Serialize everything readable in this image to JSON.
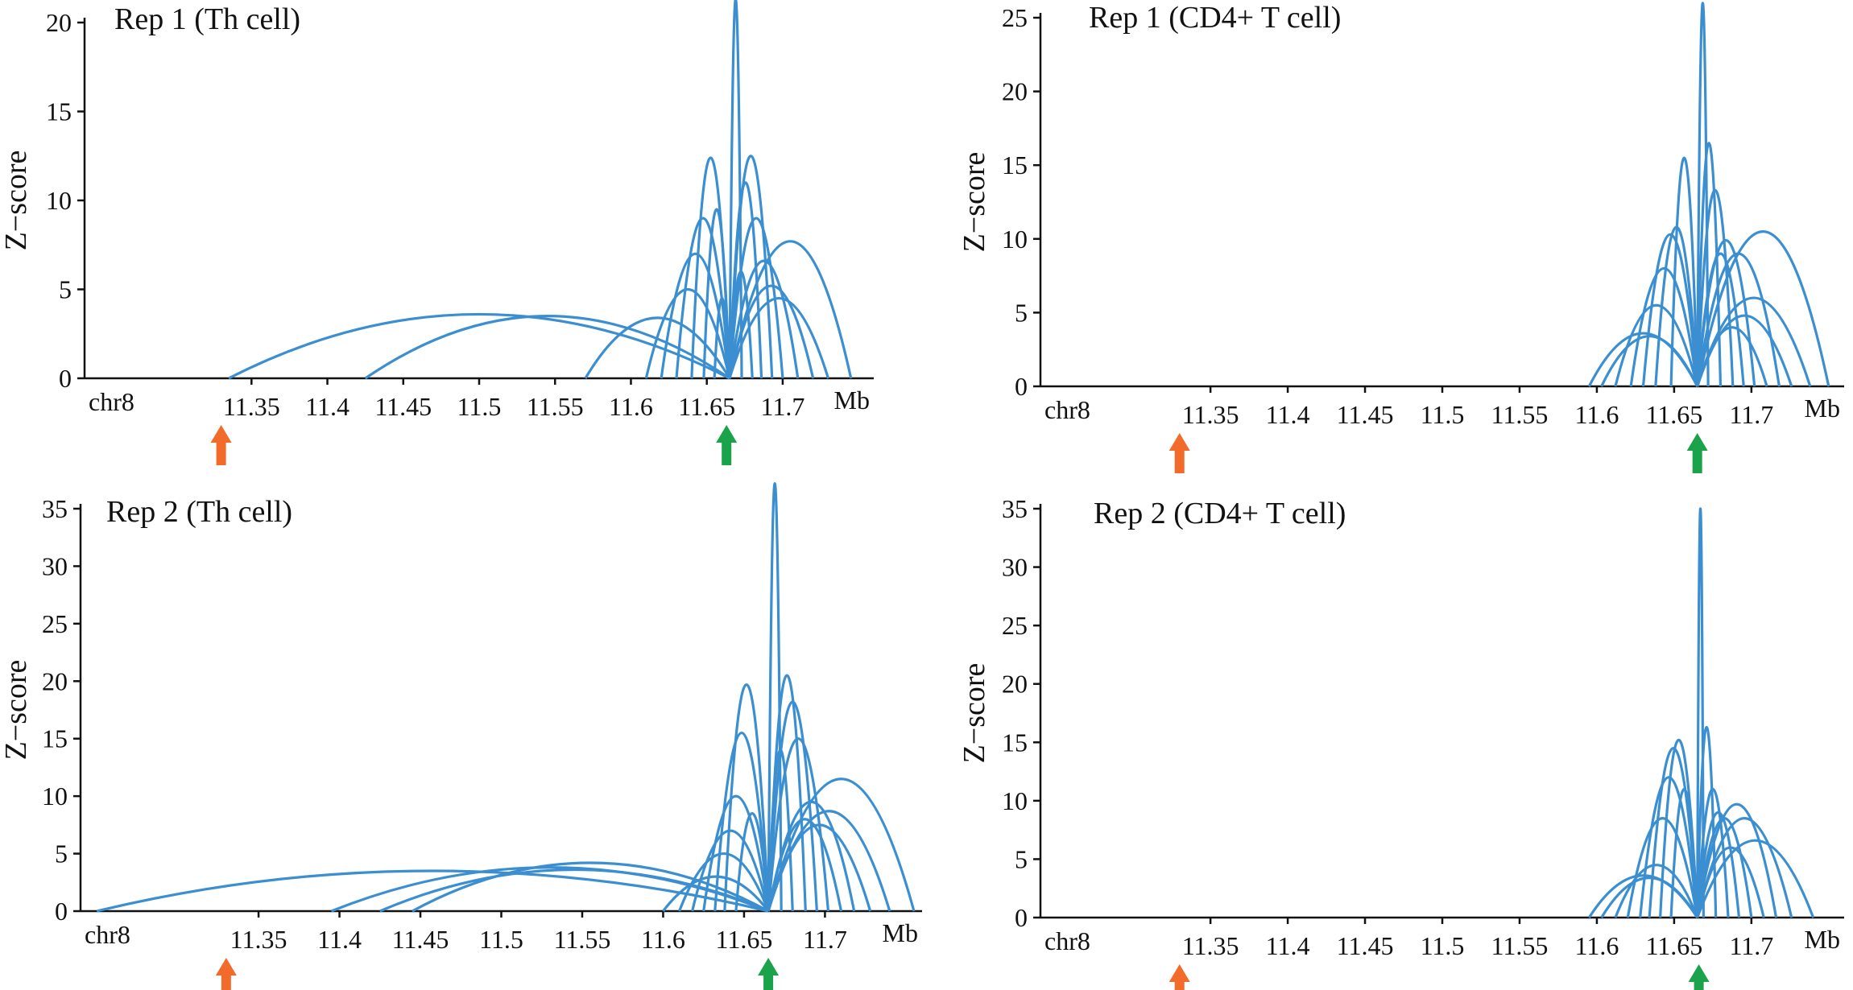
{
  "colors": {
    "arc": "#3b8fd0",
    "axis": "#111111",
    "arrow_orange": "#f26b2a",
    "arrow_green": "#1aa34a"
  },
  "chart_data": [
    {
      "type": "line",
      "title": "Rep 1 (Th cell)",
      "ylabel": "Z−score",
      "chrom_label": "chr8",
      "unit_label": "Mb",
      "xlim": [
        11.24,
        11.76
      ],
      "ylim": [
        0,
        20
      ],
      "yticks": [
        0,
        5,
        10,
        15,
        20
      ],
      "xticks": [
        11.35,
        11.4,
        11.45,
        11.5,
        11.55,
        11.6,
        11.65,
        11.7
      ],
      "xtick_labels": [
        "11.35",
        "11.4",
        "11.45",
        "11.5",
        "11.55",
        "11.6",
        "11.65",
        "11.7"
      ],
      "anchor": 11.665,
      "orange_arrow": 11.33,
      "green_arrow": 11.663,
      "arcs": [
        {
          "start": 11.335,
          "peak": 3.6
        },
        {
          "start": 11.425,
          "peak": 3.5
        },
        {
          "start": 11.57,
          "peak": 3.4
        },
        {
          "start": 11.61,
          "peak": 5.0
        },
        {
          "start": 11.62,
          "peak": 7.0
        },
        {
          "start": 11.63,
          "peak": 9.0
        },
        {
          "start": 11.64,
          "peak": 12.4
        },
        {
          "start": 11.648,
          "peak": 9.5
        },
        {
          "start": 11.655,
          "peak": 4.5
        },
        {
          "start": 11.673,
          "peak": 21.3
        },
        {
          "start": 11.68,
          "peak": 6.0
        },
        {
          "start": 11.686,
          "peak": 11.0
        },
        {
          "start": 11.693,
          "peak": 12.5
        },
        {
          "start": 11.7,
          "peak": 9.0
        },
        {
          "start": 11.71,
          "peak": 6.6
        },
        {
          "start": 11.72,
          "peak": 5.2
        },
        {
          "start": 11.73,
          "peak": 4.5
        },
        {
          "start": 11.745,
          "peak": 7.7
        }
      ]
    },
    {
      "type": "line",
      "title": "Rep 1 (CD4+ T cell)",
      "ylabel": "Z−score",
      "chrom_label": "chr8",
      "unit_label": "Mb",
      "xlim": [
        11.24,
        11.76
      ],
      "ylim": [
        0,
        25
      ],
      "yticks": [
        0,
        5,
        10,
        15,
        20,
        25
      ],
      "xticks": [
        11.35,
        11.4,
        11.45,
        11.5,
        11.55,
        11.6,
        11.65,
        11.7
      ],
      "xtick_labels": [
        "11.35",
        "11.4",
        "11.45",
        "11.5",
        "11.55",
        "11.6",
        "11.65",
        "11.7"
      ],
      "anchor": 11.665,
      "orange_arrow": 11.33,
      "green_arrow": 11.665,
      "arcs": [
        {
          "start": 11.595,
          "peak": 3.6
        },
        {
          "start": 11.603,
          "peak": 3.4
        },
        {
          "start": 11.612,
          "peak": 5.5
        },
        {
          "start": 11.622,
          "peak": 8.0
        },
        {
          "start": 11.63,
          "peak": 10.3
        },
        {
          "start": 11.638,
          "peak": 10.8
        },
        {
          "start": 11.648,
          "peak": 15.5
        },
        {
          "start": 11.672,
          "peak": 26.0
        },
        {
          "start": 11.68,
          "peak": 16.5
        },
        {
          "start": 11.688,
          "peak": 13.3
        },
        {
          "start": 11.695,
          "peak": 9.0
        },
        {
          "start": 11.702,
          "peak": 9.9
        },
        {
          "start": 11.71,
          "peak": 4.0
        },
        {
          "start": 11.718,
          "peak": 9.0
        },
        {
          "start": 11.726,
          "peak": 4.8
        },
        {
          "start": 11.738,
          "peak": 6.0
        },
        {
          "start": 11.75,
          "peak": 10.5
        }
      ]
    },
    {
      "type": "line",
      "title": "Rep 2 (Th cell)",
      "ylabel": "Z−score",
      "chrom_label": "chr8",
      "unit_label": "Mb",
      "xlim": [
        11.24,
        11.76
      ],
      "ylim": [
        0,
        35
      ],
      "yticks": [
        0,
        5,
        10,
        15,
        20,
        25,
        30,
        35
      ],
      "xticks": [
        11.35,
        11.4,
        11.45,
        11.5,
        11.55,
        11.6,
        11.65,
        11.7
      ],
      "xtick_labels": [
        "11.35",
        "11.4",
        "11.45",
        "11.5",
        "11.55",
        "11.6",
        "11.65",
        "11.7"
      ],
      "anchor": 11.665,
      "orange_arrow": 11.33,
      "green_arrow": 11.665,
      "arcs": [
        {
          "start": 11.25,
          "peak": 3.5
        },
        {
          "start": 11.395,
          "peak": 3.8
        },
        {
          "start": 11.425,
          "peak": 3.6
        },
        {
          "start": 11.445,
          "peak": 4.2
        },
        {
          "start": 11.6,
          "peak": 3.0
        },
        {
          "start": 11.61,
          "peak": 5.0
        },
        {
          "start": 11.618,
          "peak": 7.0
        },
        {
          "start": 11.625,
          "peak": 10.0
        },
        {
          "start": 11.632,
          "peak": 15.5
        },
        {
          "start": 11.638,
          "peak": 19.7
        },
        {
          "start": 11.645,
          "peak": 8.5
        },
        {
          "start": 11.673,
          "peak": 37.2
        },
        {
          "start": 11.68,
          "peak": 14.0
        },
        {
          "start": 11.688,
          "peak": 20.5
        },
        {
          "start": 11.695,
          "peak": 18.2
        },
        {
          "start": 11.702,
          "peak": 15.0
        },
        {
          "start": 11.71,
          "peak": 8.0
        },
        {
          "start": 11.718,
          "peak": 9.5
        },
        {
          "start": 11.728,
          "peak": 7.5
        },
        {
          "start": 11.74,
          "peak": 8.7
        },
        {
          "start": 11.755,
          "peak": 11.5
        }
      ]
    },
    {
      "type": "line",
      "title": "Rep 2 (CD4+ T cell)",
      "ylabel": "Z−score",
      "chrom_label": "chr8",
      "unit_label": "Mb",
      "xlim": [
        11.24,
        11.76
      ],
      "ylim": [
        0,
        35
      ],
      "yticks": [
        0,
        5,
        10,
        15,
        20,
        25,
        30,
        35
      ],
      "xticks": [
        11.35,
        11.4,
        11.45,
        11.5,
        11.55,
        11.6,
        11.65,
        11.7
      ],
      "xtick_labels": [
        "11.35",
        "11.4",
        "11.45",
        "11.5",
        "11.55",
        "11.6",
        "11.65",
        "11.7"
      ],
      "anchor": 11.665,
      "orange_arrow": 11.33,
      "green_arrow": 11.666,
      "arcs": [
        {
          "start": 11.595,
          "peak": 3.6
        },
        {
          "start": 11.603,
          "peak": 3.4
        },
        {
          "start": 11.612,
          "peak": 4.5
        },
        {
          "start": 11.62,
          "peak": 8.5
        },
        {
          "start": 11.628,
          "peak": 12.0
        },
        {
          "start": 11.634,
          "peak": 14.5
        },
        {
          "start": 11.641,
          "peak": 15.2
        },
        {
          "start": 11.648,
          "peak": 11.0
        },
        {
          "start": 11.669,
          "peak": 35.0
        },
        {
          "start": 11.677,
          "peak": 16.3
        },
        {
          "start": 11.685,
          "peak": 11.0
        },
        {
          "start": 11.692,
          "peak": 9.0
        },
        {
          "start": 11.7,
          "peak": 8.5
        },
        {
          "start": 11.708,
          "peak": 6.0
        },
        {
          "start": 11.716,
          "peak": 9.7
        },
        {
          "start": 11.726,
          "peak": 8.5
        },
        {
          "start": 11.74,
          "peak": 6.6
        }
      ]
    }
  ]
}
